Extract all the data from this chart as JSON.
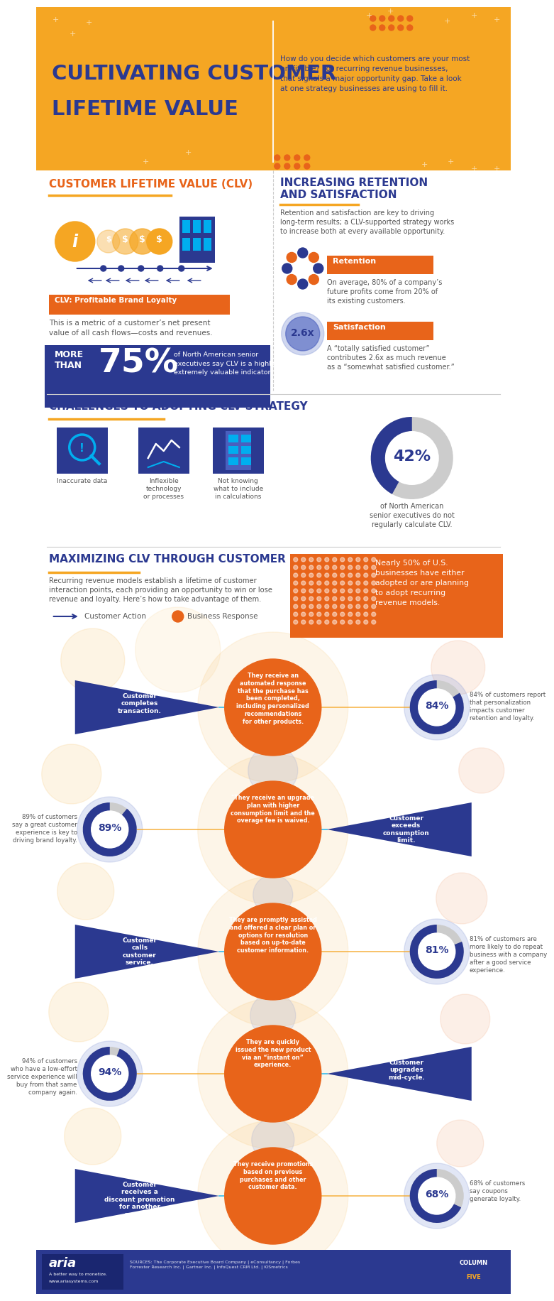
{
  "title_line1": "CULTIVATING CUSTOMER",
  "title_line2": "LIFETIME VALUE",
  "header_subtitle": "How do you decide which customers are your most\nprofitable? For recurring revenue businesses,\nthat signals a major opportunity gap. Take a look\nat one strategy businesses are using to fill it.",
  "white_bg": "#FFFFFF",
  "orange": "#F5A623",
  "dark_orange": "#E8641A",
  "blue_dark": "#2B3990",
  "blue_mid": "#4A5FBE",
  "blue_light": "#8A9CD8",
  "gray_light": "#CCCCCC",
  "gray_text": "#555555",
  "teal": "#00AEEF",
  "clv_section_title": "CUSTOMER LIFETIME VALUE (CLV)",
  "clv_badge_text": "CLV: Profitable Brand Loyalty",
  "clv_desc": "This is a metric of a customer’s net present\nvalue of all cash flows—costs and revenues.",
  "clv_stat_prefix": "MORE\nTHAN",
  "clv_stat_number": "75%",
  "clv_stat_suffix": "of North American senior\nexecutives say CLV is a highly or\nextremely valuable indicator.",
  "retention_title": "INCREASING RETENTION\nAND SATISFACTION",
  "retention_desc": "Retention and satisfaction are key to driving\nlong-term results; a CLV-supported strategy works\nto increase both at every available opportunity.",
  "retention_label": "Retention",
  "retention_text": "On average, 80% of a company’s\nfuture profits come from 20% of\nits existing customers.",
  "satisfaction_label": "Satisfaction",
  "satisfaction_text": "A “totally satisfied customer”\ncontributes 2.6x as much revenue\nas a “somewhat satisfied customer.”",
  "satisfaction_multiplier": "2.6x",
  "challenges_title": "CHALLENGES TO ADOPTING CLV STRATEGY",
  "challenges": [
    "Inaccurate data",
    "Inflexible\ntechnology\nor processes",
    "Not knowing\nwhat to include\nin calculations"
  ],
  "challenges_stat": "42%",
  "challenges_stat_text": "of North American\nsenior executives do not\nregularly calculate CLV.",
  "maximizing_title": "MAXIMIZING CLV THROUGH CUSTOMER INTERACTIONS",
  "maximizing_desc": "Recurring revenue models establish a lifetime of customer\ninteraction points, each providing an opportunity to win or lose\nrevenue and loyalty. Here’s how to take advantage of them.",
  "legend_action": "Customer Action",
  "legend_response": "Business Response",
  "nearly50_text": "Nearly 50% of U.S.\nbusinesses have either\nadopted or are planning\nto adopt recurring\nrevenue models.",
  "interactions": [
    {
      "action": "Customer\ncompletes\ntransaction.",
      "response": "They receive an\nautomated response\nthat the purchase has\nbeen completed,\nincluding personalized\nrecommendations\nfor other products.",
      "stat": "84%",
      "stat_text": "84% of customers report\nthat personalization\nimpacts customer\nretention and loyalty.",
      "action_side": "left"
    },
    {
      "action": "Customer\nexceeds\nconsumption\nlimit.",
      "response": "\"They receive an upgrade\nplan with higher\nconsumption limit and the\noverage fee is waived.",
      "stat": "89%",
      "stat_text": "89% of customers\nsay a great customer\nexperience is key to\ndriving brand loyalty.",
      "action_side": "right"
    },
    {
      "action": "Customer\ncalls\ncustomer\nservice.",
      "response": "They are promptly assisted\nand offered a clear plan or\noptions for resolution\nbased on up-to-date\ncustomer information.",
      "stat": "81%",
      "stat_text": "81% of customers are\nmore likely to do repeat\nbusiness with a company\nafter a good service\nexperience.",
      "action_side": "left"
    },
    {
      "action": "Customer\nupgrades\nmid-cycle.",
      "response": "They are quickly\nissued the new product\nvia an “instant on”\nexperience.",
      "stat": "94%",
      "stat_text": "94% of customers\nwho have a low-effort\nservice experience will\nbuy from that same\ncompany again.",
      "action_side": "right"
    },
    {
      "action": "Customer\nreceives a\ndiscount promotion\nfor another\nproduct.",
      "response": "They receive promotions\nbased on previous\npurchases and other\ncustomer data.",
      "stat": "68%",
      "stat_text": "68% of customers\nsay coupons\ngenerate loyalty.",
      "action_side": "left"
    }
  ],
  "footer_sources": "SOURCES: The Corporate Executive Board Company | eConsultancy | Forbes\nForrester Research Inc. | Gartner Inc. | InfoQuest CRM Ltd. | KISmetrics",
  "footer_bg": "#2B3990"
}
